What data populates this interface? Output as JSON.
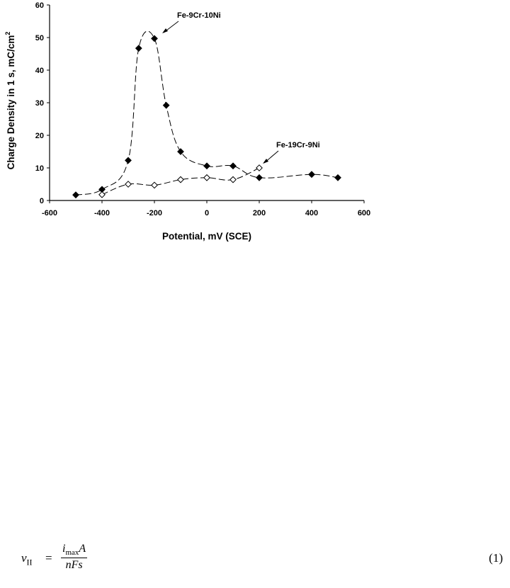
{
  "chart_data": {
    "type": "scatter",
    "title": "",
    "xlabel": "Potential, mV (SCE)",
    "ylabel_main": "Charge Density in 1 s, mC/cm",
    "ylabel_sup": "2",
    "xlim": [
      -600,
      600
    ],
    "ylim": [
      0,
      60
    ],
    "xticks": [
      "-600",
      "-400",
      "-200",
      "0",
      "200",
      "400",
      "600"
    ],
    "yticks": [
      "0",
      "10",
      "20",
      "30",
      "40",
      "50",
      "60"
    ],
    "grid": false,
    "series": [
      {
        "name": "Fe-9Cr-10Ni",
        "marker": "filled-diamond",
        "x": [
          -500,
          -400,
          -300,
          -260,
          -200,
          -155,
          -100,
          0,
          100,
          200,
          400,
          500
        ],
        "y": [
          1.7,
          3.4,
          12.3,
          46.7,
          49.7,
          29.2,
          15.0,
          10.6,
          10.6,
          7.0,
          8.0,
          7.0
        ]
      },
      {
        "name": "Fe-19Cr-9Ni",
        "marker": "open-diamond",
        "x": [
          -400,
          -300,
          -200,
          -100,
          0,
          100,
          200
        ],
        "y": [
          1.8,
          5.0,
          4.7,
          6.4,
          7.0,
          6.4,
          10.0
        ]
      }
    ],
    "annotations": [
      "Fe-9Cr-10Ni",
      "Fe-19Cr-9Ni"
    ]
  },
  "equation": {
    "lhs_var": "v",
    "lhs_sub": "II",
    "equals": "=",
    "num_i": "i",
    "num_sub": "max",
    "num_A": "A",
    "denominator": "nFs",
    "number": "(1)"
  }
}
